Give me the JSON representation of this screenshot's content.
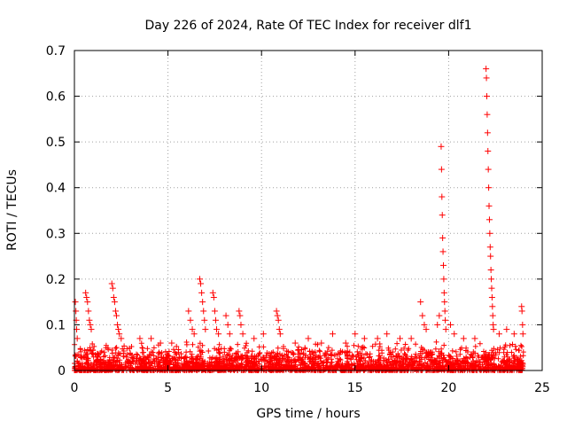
{
  "chart_data": {
    "type": "scatter",
    "title": "Day 226 of 2024, Rate Of TEC Index for receiver dlf1",
    "xlabel": "GPS time / hours",
    "ylabel": "ROTI / TECUs",
    "xlim": [
      0,
      25
    ],
    "ylim": [
      0,
      0.7
    ],
    "xticks": [
      "0",
      "5",
      "10",
      "15",
      "20",
      "25"
    ],
    "yticks": [
      "0",
      "0.1",
      "0.2",
      "0.3",
      "0.4",
      "0.5",
      "0.6",
      "0.7"
    ],
    "grid": true,
    "marker": "+",
    "color": "#ff0000",
    "data_range_x": [
      0,
      24
    ],
    "baseline_band_y": [
      0.0,
      0.05
    ],
    "series": [
      {
        "points": [
          [
            0.05,
            0.15
          ],
          [
            0.08,
            0.13
          ],
          [
            0.1,
            0.11
          ],
          [
            0.12,
            0.09
          ],
          [
            0.15,
            0.07
          ],
          [
            0.6,
            0.17
          ],
          [
            0.65,
            0.16
          ],
          [
            0.7,
            0.15
          ],
          [
            0.75,
            0.13
          ],
          [
            0.8,
            0.11
          ],
          [
            0.85,
            0.1
          ],
          [
            0.9,
            0.09
          ],
          [
            2.0,
            0.19
          ],
          [
            2.05,
            0.18
          ],
          [
            2.1,
            0.16
          ],
          [
            2.15,
            0.15
          ],
          [
            2.2,
            0.13
          ],
          [
            2.25,
            0.12
          ],
          [
            2.3,
            0.1
          ],
          [
            2.35,
            0.09
          ],
          [
            2.4,
            0.08
          ],
          [
            2.5,
            0.07
          ],
          [
            3.5,
            0.07
          ],
          [
            4.1,
            0.07
          ],
          [
            4.6,
            0.06
          ],
          [
            5.2,
            0.06
          ],
          [
            6.1,
            0.13
          ],
          [
            6.2,
            0.11
          ],
          [
            6.3,
            0.09
          ],
          [
            6.4,
            0.08
          ],
          [
            6.7,
            0.2
          ],
          [
            6.75,
            0.19
          ],
          [
            6.8,
            0.17
          ],
          [
            6.85,
            0.15
          ],
          [
            6.9,
            0.13
          ],
          [
            6.95,
            0.11
          ],
          [
            7.0,
            0.09
          ],
          [
            7.4,
            0.17
          ],
          [
            7.45,
            0.16
          ],
          [
            7.5,
            0.13
          ],
          [
            7.55,
            0.11
          ],
          [
            7.6,
            0.09
          ],
          [
            7.7,
            0.08
          ],
          [
            8.1,
            0.12
          ],
          [
            8.2,
            0.1
          ],
          [
            8.3,
            0.08
          ],
          [
            8.8,
            0.13
          ],
          [
            8.85,
            0.12
          ],
          [
            8.9,
            0.1
          ],
          [
            9.0,
            0.08
          ],
          [
            9.6,
            0.07
          ],
          [
            10.1,
            0.08
          ],
          [
            10.8,
            0.13
          ],
          [
            10.85,
            0.12
          ],
          [
            10.9,
            0.11
          ],
          [
            10.95,
            0.09
          ],
          [
            11.0,
            0.08
          ],
          [
            11.8,
            0.06
          ],
          [
            12.5,
            0.07
          ],
          [
            13.2,
            0.06
          ],
          [
            13.8,
            0.08
          ],
          [
            14.5,
            0.06
          ],
          [
            15.0,
            0.08
          ],
          [
            15.5,
            0.07
          ],
          [
            16.2,
            0.07
          ],
          [
            16.7,
            0.08
          ],
          [
            17.4,
            0.07
          ],
          [
            18.0,
            0.07
          ],
          [
            18.5,
            0.15
          ],
          [
            18.6,
            0.12
          ],
          [
            18.7,
            0.1
          ],
          [
            18.8,
            0.09
          ],
          [
            19.4,
            0.1
          ],
          [
            19.5,
            0.12
          ],
          [
            19.6,
            0.49
          ],
          [
            19.62,
            0.44
          ],
          [
            19.64,
            0.38
          ],
          [
            19.66,
            0.34
          ],
          [
            19.68,
            0.29
          ],
          [
            19.7,
            0.26
          ],
          [
            19.72,
            0.23
          ],
          [
            19.74,
            0.2
          ],
          [
            19.76,
            0.17
          ],
          [
            19.78,
            0.15
          ],
          [
            19.8,
            0.13
          ],
          [
            19.82,
            0.11
          ],
          [
            19.85,
            0.09
          ],
          [
            20.1,
            0.1
          ],
          [
            20.3,
            0.08
          ],
          [
            20.8,
            0.07
          ],
          [
            21.4,
            0.07
          ],
          [
            22.0,
            0.66
          ],
          [
            22.02,
            0.64
          ],
          [
            22.04,
            0.6
          ],
          [
            22.06,
            0.56
          ],
          [
            22.08,
            0.52
          ],
          [
            22.1,
            0.48
          ],
          [
            22.12,
            0.44
          ],
          [
            22.14,
            0.4
          ],
          [
            22.16,
            0.36
          ],
          [
            22.18,
            0.33
          ],
          [
            22.2,
            0.3
          ],
          [
            22.22,
            0.27
          ],
          [
            22.24,
            0.25
          ],
          [
            22.26,
            0.22
          ],
          [
            22.28,
            0.2
          ],
          [
            22.3,
            0.18
          ],
          [
            22.32,
            0.16
          ],
          [
            22.34,
            0.14
          ],
          [
            22.36,
            0.12
          ],
          [
            22.38,
            0.1
          ],
          [
            22.4,
            0.09
          ],
          [
            22.7,
            0.08
          ],
          [
            23.1,
            0.09
          ],
          [
            23.5,
            0.08
          ],
          [
            23.9,
            0.14
          ],
          [
            23.92,
            0.13
          ],
          [
            23.95,
            0.1
          ],
          [
            23.97,
            0.08
          ]
        ]
      }
    ]
  }
}
